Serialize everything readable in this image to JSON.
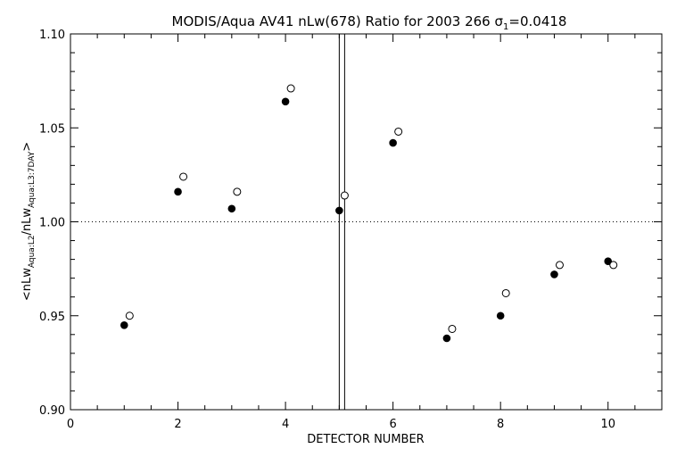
{
  "chart_data": {
    "type": "scatter",
    "title_main": "MODIS/Aqua AV41 nLw(678) Ratio for 2003 266 ",
    "title_sigma": "σ",
    "title_sigma_sub": "1",
    "title_value": "=0.0418",
    "xlabel": "DETECTOR NUMBER",
    "ylabel": {
      "prefix": "<nLw",
      "sub1": "Aqua:L2",
      "mid": "/nLw",
      "sub2": "Aqua:L3:7DAY",
      "suffix": ">"
    },
    "xlim": [
      0,
      11
    ],
    "ylim": [
      0.9,
      1.1
    ],
    "x_ticks": [
      0,
      2,
      4,
      6,
      8,
      10
    ],
    "x_tick_labels": [
      "0",
      "2",
      "4",
      "6",
      "8",
      "10"
    ],
    "y_ticks": [
      0.9,
      0.95,
      1.0,
      1.05,
      1.1
    ],
    "y_tick_labels": [
      "0.90",
      "0.95",
      "1.00",
      "1.05",
      "1.10"
    ],
    "reference_line_y": 1.0,
    "vertical_lines_x": [
      5.0,
      5.1
    ],
    "series": [
      {
        "marker": "filled-circle",
        "x": [
          1,
          2,
          3,
          4,
          5,
          6,
          7,
          8,
          9,
          10
        ],
        "y": [
          0.945,
          1.016,
          1.007,
          1.064,
          1.006,
          1.042,
          0.938,
          0.95,
          0.972,
          0.979
        ]
      },
      {
        "marker": "open-circle",
        "x": [
          1.1,
          2.1,
          3.1,
          4.1,
          5.1,
          6.1,
          7.1,
          8.1,
          9.1,
          10.1
        ],
        "y": [
          0.95,
          1.024,
          1.016,
          1.071,
          1.014,
          1.048,
          0.943,
          0.962,
          0.977,
          0.977
        ]
      }
    ]
  }
}
